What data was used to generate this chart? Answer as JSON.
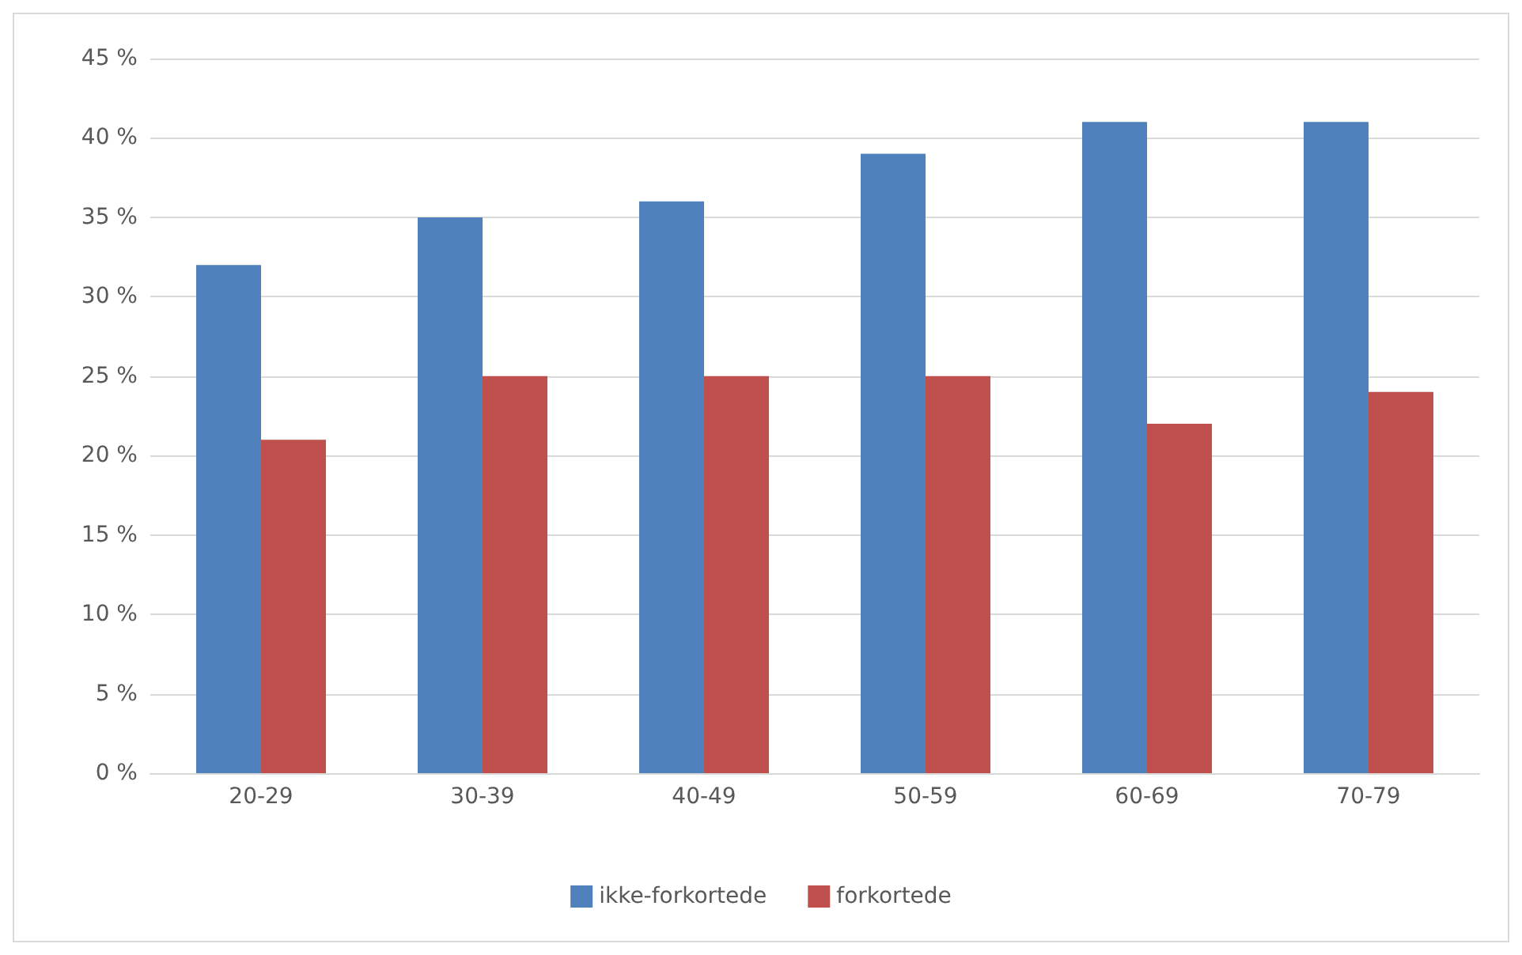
{
  "chart_data": {
    "type": "bar",
    "categories": [
      "20-29",
      "30-39",
      "40-49",
      "50-59",
      "60-69",
      "70-79"
    ],
    "series": [
      {
        "name": "ikke-forkortede",
        "color": "#4f81bd",
        "values": [
          32,
          35,
          36,
          39,
          41,
          41
        ]
      },
      {
        "name": "forkortede",
        "color": "#c0504d",
        "values": [
          21,
          25,
          25,
          25,
          22,
          24
        ]
      }
    ],
    "ylim": [
      0,
      45
    ],
    "yticks": [
      {
        "value": 0,
        "label": "0 %"
      },
      {
        "value": 5,
        "label": "5 %"
      },
      {
        "value": 10,
        "label": "10 %"
      },
      {
        "value": 15,
        "label": "15 %"
      },
      {
        "value": 20,
        "label": "20 %"
      },
      {
        "value": 25,
        "label": "25 %"
      },
      {
        "value": 30,
        "label": "30 %"
      },
      {
        "value": 35,
        "label": "35 %"
      },
      {
        "value": 40,
        "label": "40 %"
      },
      {
        "value": 45,
        "label": "45 %"
      }
    ],
    "grid": "y",
    "legend": "bottom"
  }
}
